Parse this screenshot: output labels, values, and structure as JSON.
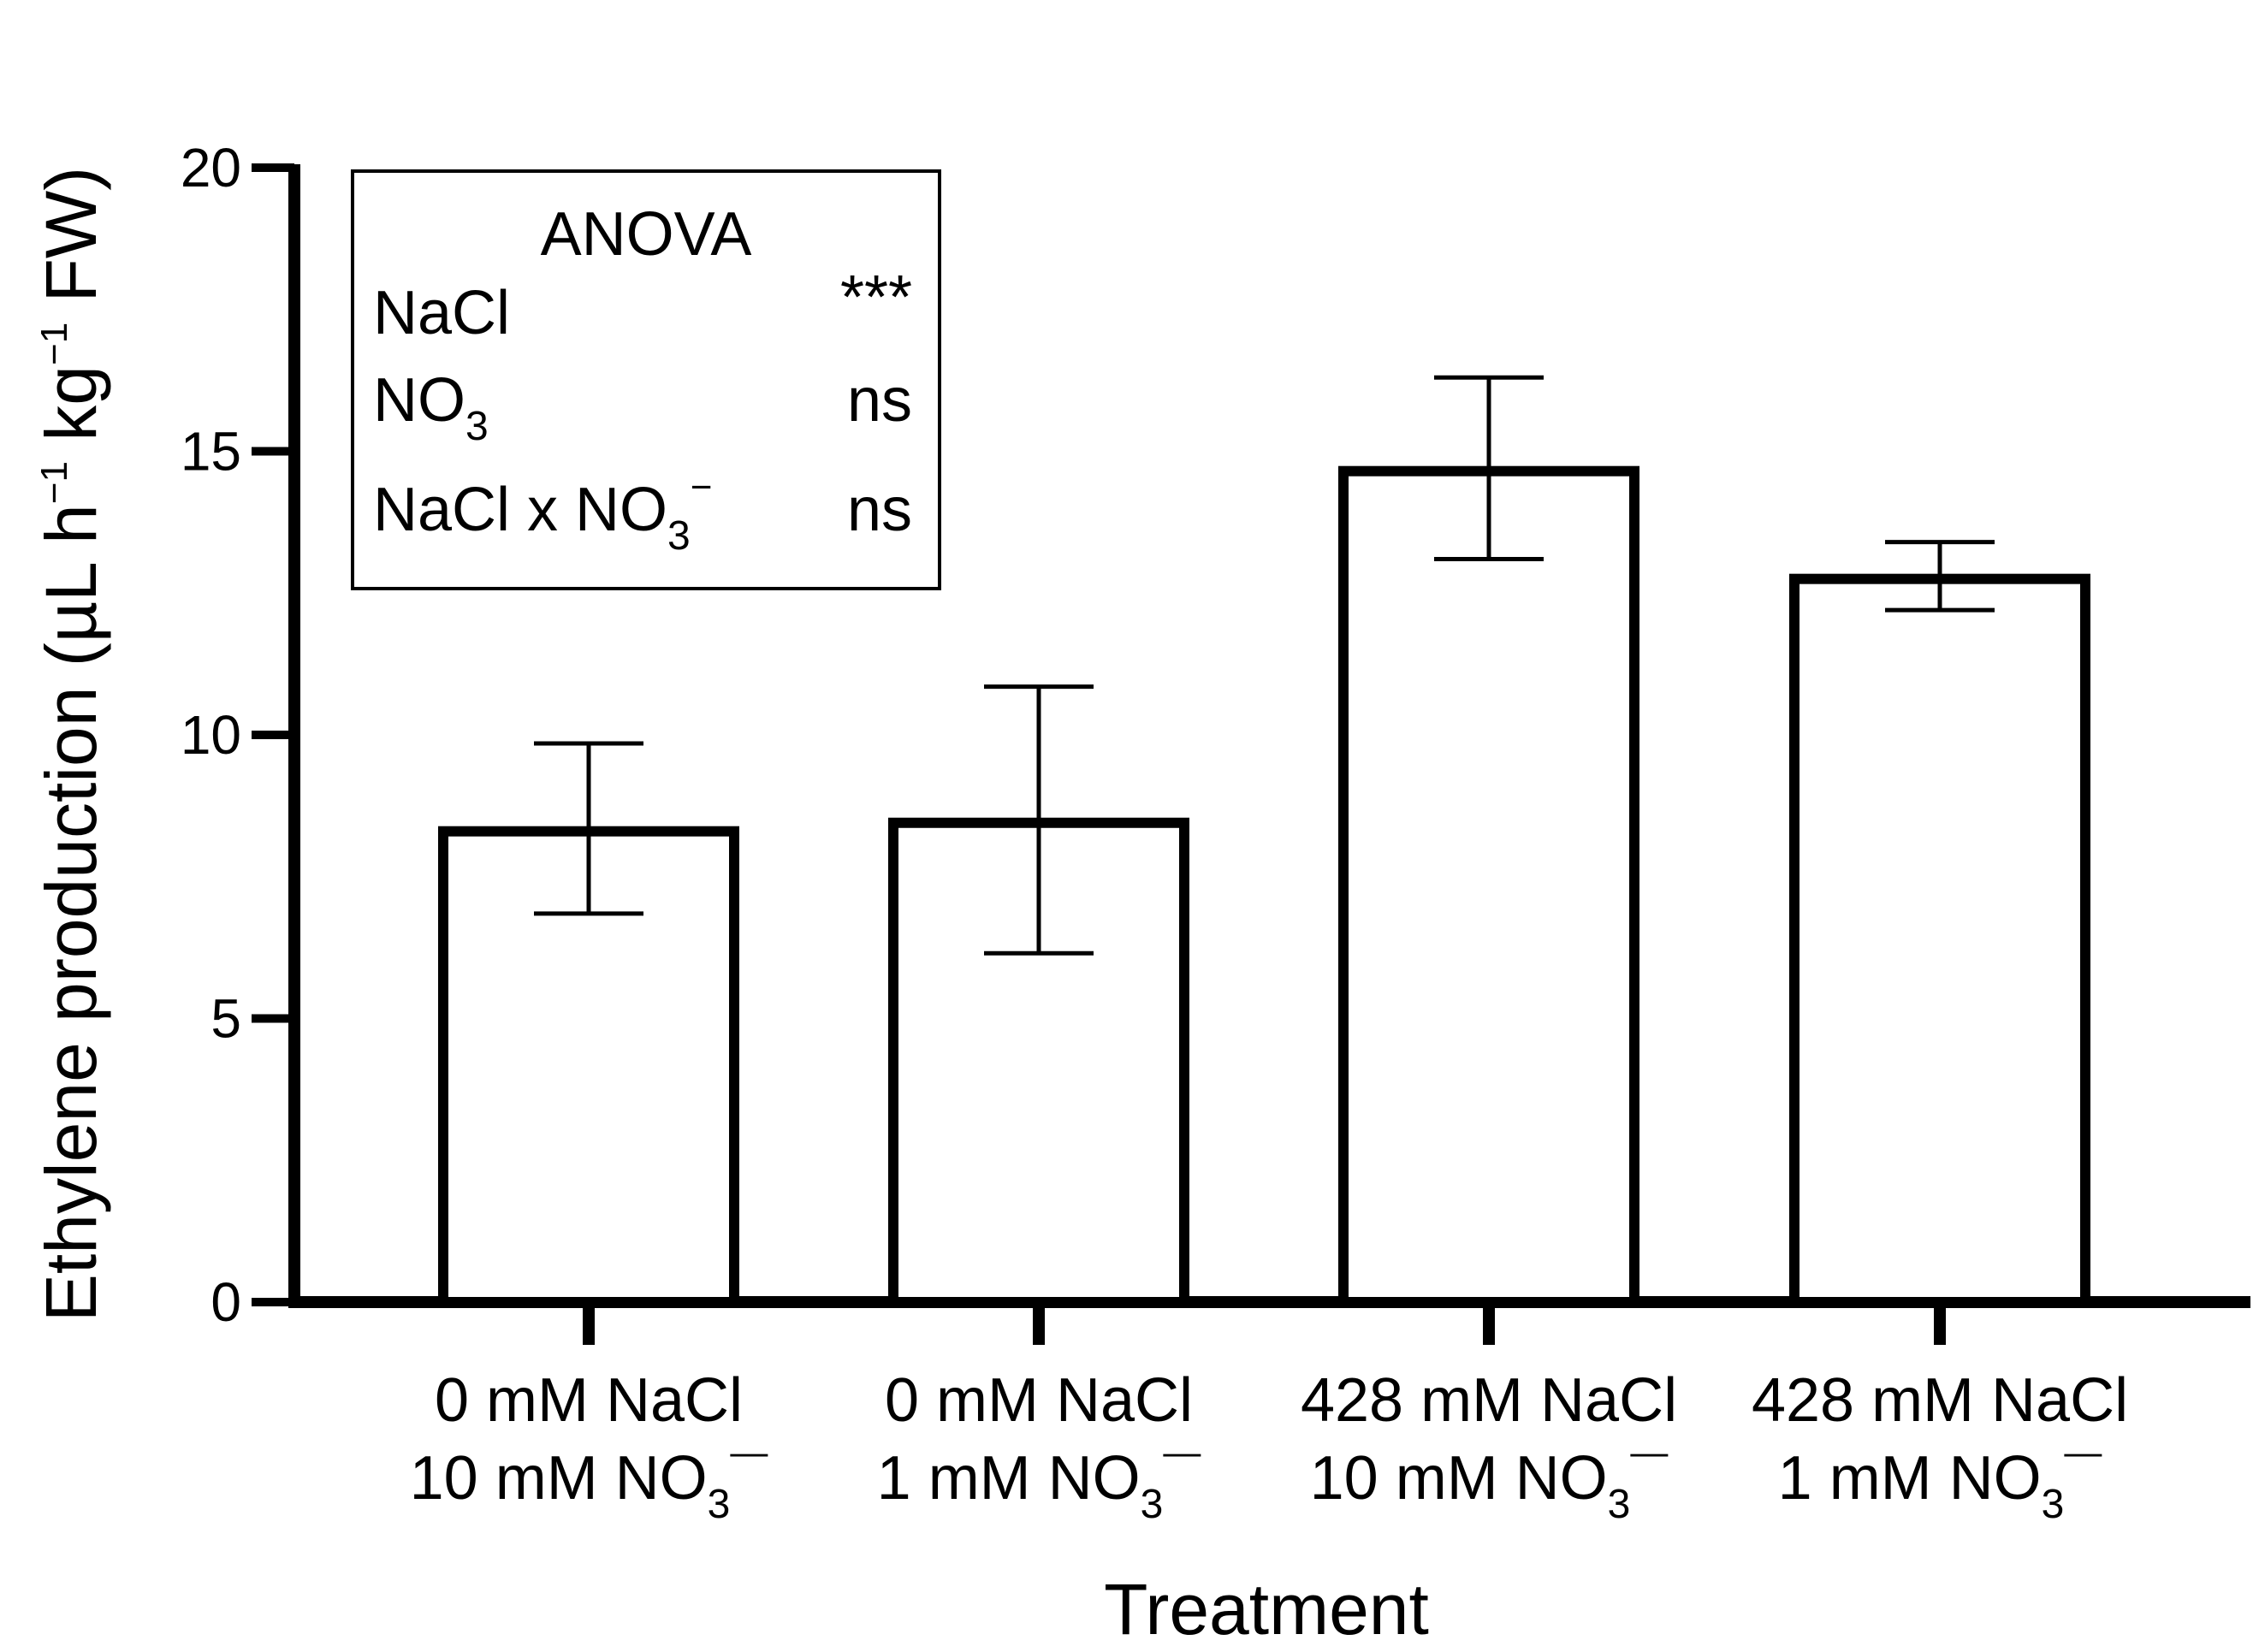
{
  "chart_data": {
    "type": "bar",
    "xlabel": "Treatment",
    "ylabel": "Ethylene production (µL h",
    "ylabel_parts": [
      "Ethylene production (µL h",
      "−1",
      " kg",
      "−1",
      " FW)"
    ],
    "ylim": [
      0,
      20
    ],
    "yticks": [
      "0",
      "5",
      "10",
      "15",
      "20"
    ],
    "categories": [
      {
        "line1": "0 mM NaCl",
        "line2a": "10 mM NO",
        "sub": "3",
        "sup": "—"
      },
      {
        "line1": "0 mM NaCl",
        "line2a": "1 mM NO",
        "sub": "3",
        "sup": "—"
      },
      {
        "line1": "428 mM NaCl",
        "line2a": "10 mM NO",
        "sub": "3",
        "sup": "—"
      },
      {
        "line1": "428 mM NaCl",
        "line2a": "1 mM NO",
        "sub": "3",
        "sup": "—"
      }
    ],
    "values": [
      8.3,
      8.45,
      14.65,
      12.75
    ],
    "error_upper": [
      9.85,
      10.85,
      16.3,
      13.4
    ],
    "error_lower": [
      6.85,
      6.15,
      13.1,
      12.2
    ],
    "bar_fill": "#ffffff",
    "bar_stroke": "#000000",
    "grid": false
  },
  "anova": {
    "title": "ANOVA",
    "rows": [
      {
        "label": "NaCl",
        "sub": "",
        "sup": "",
        "value": "***"
      },
      {
        "label": "NO",
        "sub": "3",
        "sup": "",
        "value": "ns"
      },
      {
        "label": "NaCl x NO",
        "sub": "3",
        "sup": "−",
        "value": "ns"
      }
    ]
  }
}
